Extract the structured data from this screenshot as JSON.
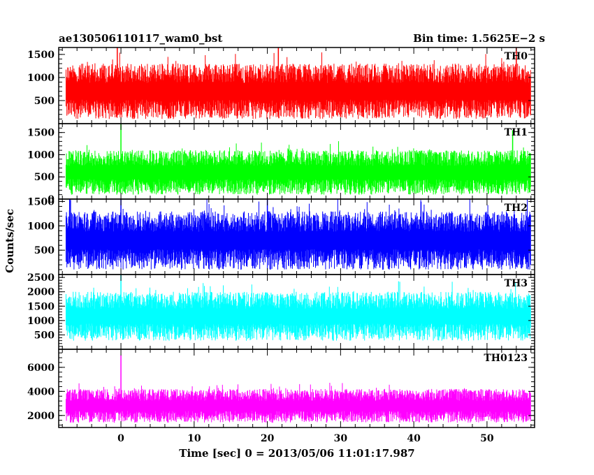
{
  "header": {
    "title": "ae130506110117_wam0_bst",
    "bin_time": "Bin time: 1.5625E−2 s"
  },
  "chart_data": {
    "type": "line",
    "title": "ae130506110117_wam0_bst",
    "xlabel": "Time [sec] 0 = 2013/05/06 11:01:17.987",
    "ylabel": "Counts/sec",
    "xlim": [
      -8.5,
      56.5
    ],
    "x_ticks": [
      0,
      10,
      20,
      30,
      40,
      50
    ],
    "x_tick_labels": [
      "0",
      "10",
      "20",
      "30",
      "40",
      "50"
    ],
    "data_x_range": [
      -7.5,
      56.0
    ],
    "grid": false,
    "panels": [
      {
        "name": "TH0",
        "color": "#ff0000",
        "ylim": [
          0,
          1650
        ],
        "y_ticks": [
          500,
          1000,
          1500
        ],
        "y_tick_labels": [
          "500",
          "1000",
          "1500"
        ],
        "typical_range": [
          100,
          1300
        ],
        "spikes": [
          {
            "x": -0.5,
            "y": 1650
          },
          {
            "x": 21.5,
            "y": 1650
          },
          {
            "x": 54.0,
            "y": 1650
          }
        ]
      },
      {
        "name": "TH1",
        "color": "#00ff00",
        "ylim": [
          0,
          1700
        ],
        "y_ticks": [
          0,
          500,
          1000,
          1500
        ],
        "y_tick_labels": [
          "0",
          "500",
          "1000",
          "1500"
        ],
        "typical_range": [
          100,
          1100
        ],
        "spikes": [
          {
            "x": 0.0,
            "y": 1700
          },
          {
            "x": 53.5,
            "y": 1550
          }
        ]
      },
      {
        "name": "TH2",
        "color": "#0000ff",
        "ylim": [
          0,
          1550
        ],
        "y_ticks": [
          500,
          1000,
          1500
        ],
        "y_tick_labels": [
          "500",
          "1000",
          "1500"
        ],
        "typical_range": [
          100,
          1300
        ],
        "spikes": [
          {
            "x": -7.0,
            "y": 1550
          },
          {
            "x": 0.0,
            "y": 1550
          },
          {
            "x": 20.0,
            "y": 1550
          }
        ]
      },
      {
        "name": "TH3",
        "color": "#00ffff",
        "ylim": [
          0,
          2600
        ],
        "y_ticks": [
          500,
          1000,
          1500,
          2000,
          2500
        ],
        "y_tick_labels": [
          "500",
          "1000",
          "1500",
          "2000",
          "2500"
        ],
        "typical_range": [
          300,
          2000
        ],
        "spikes": [
          {
            "x": 0.0,
            "y": 2600
          }
        ]
      },
      {
        "name": "TH0123",
        "color": "#ff00ff",
        "ylim": [
          1000,
          7500
        ],
        "y_ticks": [
          2000,
          4000,
          6000
        ],
        "y_tick_labels": [
          "2000",
          "4000",
          "6000"
        ],
        "typical_range": [
          1400,
          4200
        ],
        "spikes": [
          {
            "x": 0.0,
            "y": 7000
          }
        ]
      }
    ]
  }
}
